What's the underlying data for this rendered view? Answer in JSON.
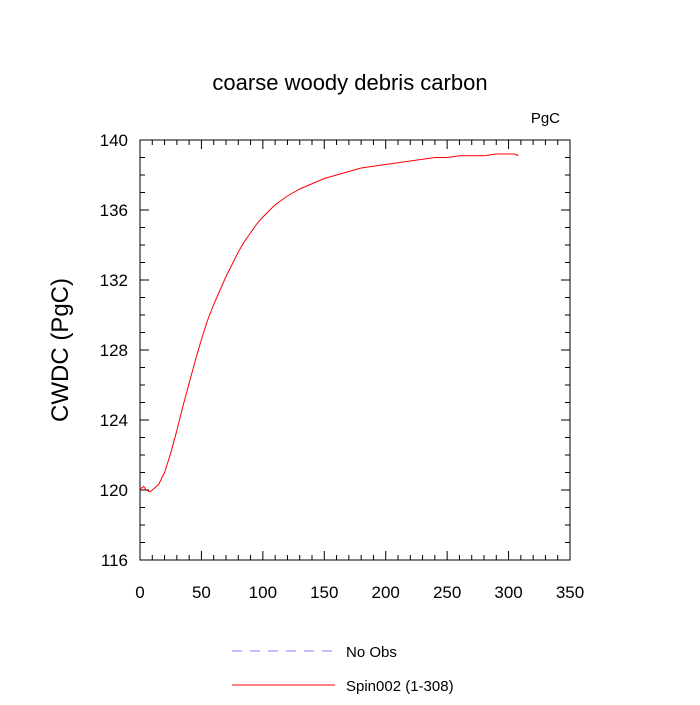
{
  "chart_data": {
    "type": "line",
    "title": "coarse woody debris carbon",
    "units_label": "PgC",
    "xlabel": "",
    "ylabel": "CWDC  (PgC)",
    "xlim": [
      0,
      350
    ],
    "ylim": [
      116,
      140
    ],
    "x_ticks": [
      0,
      50,
      100,
      150,
      200,
      250,
      300,
      350
    ],
    "y_ticks": [
      116,
      120,
      124,
      128,
      132,
      136,
      140
    ],
    "x_tick_labels": [
      "0",
      "50",
      "100",
      "150",
      "200",
      "250",
      "300",
      "350"
    ],
    "y_tick_labels": [
      "116",
      "120",
      "124",
      "128",
      "132",
      "136",
      "140"
    ],
    "grid": false,
    "legend_position": "bottom",
    "series": [
      {
        "name": "No Obs",
        "color": "#8080ff",
        "style": "dashed",
        "x": [],
        "y": []
      },
      {
        "name": "Spin002 (1-308)",
        "color": "#ff0000",
        "style": "solid",
        "x": [
          0,
          1,
          3,
          5,
          8,
          10,
          15,
          20,
          25,
          30,
          35,
          40,
          45,
          50,
          55,
          60,
          65,
          70,
          75,
          80,
          85,
          90,
          95,
          100,
          110,
          120,
          130,
          140,
          150,
          160,
          170,
          180,
          190,
          200,
          210,
          220,
          230,
          240,
          250,
          260,
          270,
          280,
          290,
          300,
          305,
          308
        ],
        "y": [
          120.0,
          120.1,
          120.2,
          120.0,
          119.9,
          120.0,
          120.3,
          121.0,
          122.1,
          123.4,
          124.8,
          126.1,
          127.4,
          128.6,
          129.7,
          130.6,
          131.4,
          132.2,
          132.9,
          133.6,
          134.2,
          134.7,
          135.2,
          135.6,
          136.3,
          136.8,
          137.2,
          137.5,
          137.8,
          138.0,
          138.2,
          138.4,
          138.5,
          138.6,
          138.7,
          138.8,
          138.9,
          139.0,
          139.0,
          139.1,
          139.1,
          139.1,
          139.2,
          139.2,
          139.2,
          139.1
        ]
      }
    ]
  }
}
